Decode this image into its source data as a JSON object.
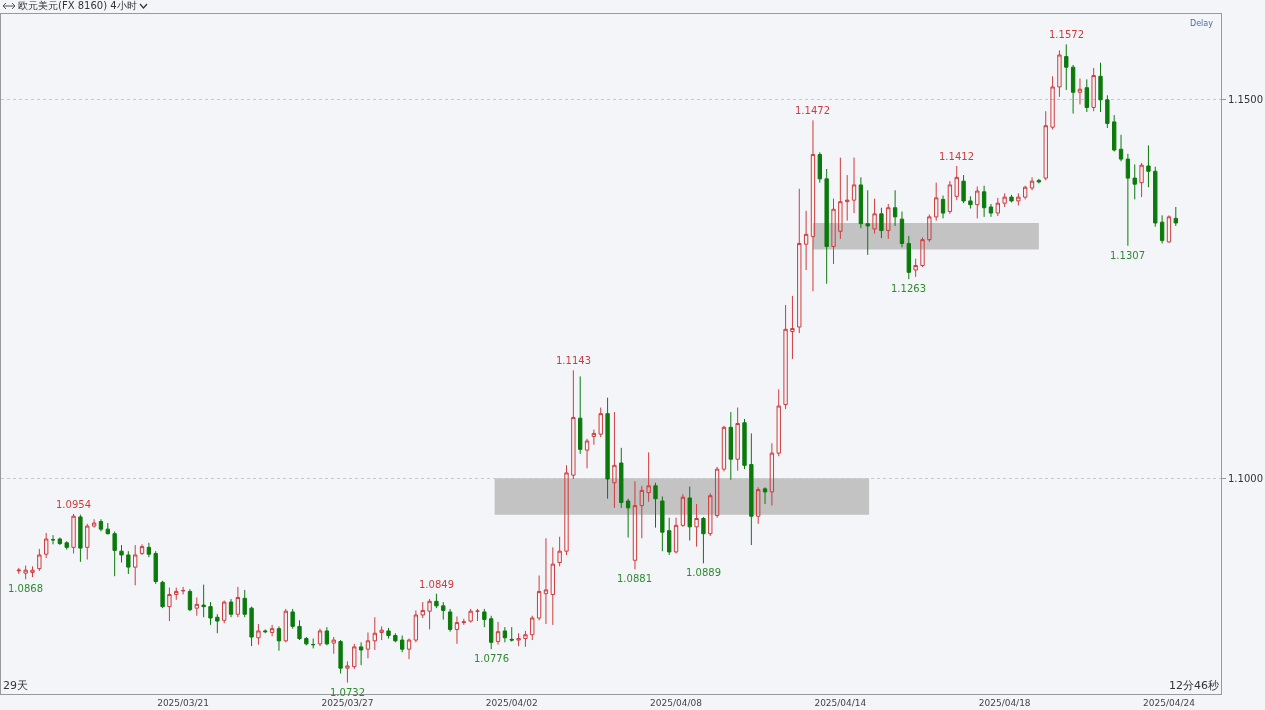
{
  "chart_data": {
    "type": "candlestick",
    "title": "欧元美元(FX 8160)  4小时",
    "categories": [
      null,
      null,
      null,
      null,
      null,
      null,
      null,
      null,
      null,
      null,
      null,
      null,
      null,
      null,
      null,
      null,
      null,
      null,
      null,
      null,
      null,
      null,
      null,
      null,
      "2025/03/21",
      null,
      null,
      null,
      null,
      null,
      null,
      null,
      null,
      null,
      null,
      null,
      null,
      null,
      null,
      null,
      null,
      null,
      null,
      null,
      null,
      null,
      null,
      null,
      "2025/03/27",
      null,
      null,
      null,
      null,
      null,
      null,
      null,
      null,
      null,
      null,
      null,
      null,
      null,
      null,
      null,
      null,
      null,
      null,
      null,
      null,
      null,
      null,
      null,
      "2025/04/02",
      null,
      null,
      null,
      null,
      null,
      null,
      null,
      null,
      null,
      null,
      null,
      null,
      null,
      null,
      null,
      null,
      null,
      null,
      null,
      null,
      null,
      null,
      null,
      "2025/04/08",
      null,
      null,
      null,
      null,
      null,
      null,
      null,
      null,
      null,
      null,
      null,
      null,
      null,
      null,
      null,
      null,
      null,
      null,
      null,
      null,
      null,
      null,
      null,
      "2025/04/14",
      null,
      null,
      null,
      null,
      null,
      null,
      null,
      null,
      null,
      null,
      null,
      null,
      null,
      null,
      null,
      null,
      null,
      null,
      null,
      null,
      null,
      null,
      null,
      "2025/04/18",
      null,
      null,
      null,
      null,
      null,
      null,
      null,
      null,
      null,
      null,
      null,
      null,
      null,
      null,
      null,
      null,
      null,
      null,
      null,
      null,
      null,
      null,
      null,
      "2025/04/24",
      null
    ],
    "ohlc": [
      [
        1.0879,
        1.0883,
        1.0875,
        1.088
      ],
      [
        1.0876,
        1.0886,
        1.0868,
        1.088
      ],
      [
        1.0877,
        1.0885,
        1.0871,
        1.088
      ],
      [
        1.0882,
        1.0908,
        1.0879,
        1.09
      ],
      [
        1.0901,
        1.0929,
        1.0896,
        1.0921
      ],
      [
        1.092,
        1.0926,
        1.0914,
        1.092
      ],
      [
        1.0921,
        1.0923,
        1.0913,
        1.0915
      ],
      [
        1.0916,
        1.0918,
        1.0907,
        1.091
      ],
      [
        1.091,
        1.0954,
        1.0902,
        1.0951
      ],
      [
        1.095,
        1.0953,
        1.0891,
        1.0909
      ],
      [
        1.091,
        1.0941,
        1.0894,
        1.0938
      ],
      [
        1.0938,
        1.0947,
        1.0936,
        1.0942
      ],
      [
        1.0944,
        1.0947,
        1.0931,
        1.0934
      ],
      [
        1.0934,
        1.0942,
        1.0927,
        1.0928
      ],
      [
        1.0928,
        1.0931,
        1.0872,
        1.0906
      ],
      [
        1.0905,
        1.0913,
        1.089,
        1.09
      ],
      [
        1.09,
        1.0905,
        1.0875,
        1.0884
      ],
      [
        1.0884,
        1.0913,
        1.086,
        1.09
      ],
      [
        1.0902,
        1.0914,
        1.09,
        1.0911
      ],
      [
        1.091,
        1.0916,
        1.0897,
        1.0901
      ],
      [
        1.0902,
        1.0905,
        1.0862,
        1.0865
      ],
      [
        1.0864,
        1.0866,
        1.083,
        1.0832
      ],
      [
        1.0832,
        1.0857,
        1.0813,
        1.0848
      ],
      [
        1.0848,
        1.0857,
        1.0841,
        1.0852
      ],
      [
        1.0853,
        1.0858,
        1.0848,
        1.0853
      ],
      [
        1.0852,
        1.0855,
        1.0826,
        1.0828
      ],
      [
        1.083,
        1.0844,
        1.082,
        1.0835
      ],
      [
        1.0834,
        1.0861,
        1.0818,
        1.0832
      ],
      [
        1.0832,
        1.0838,
        1.0808,
        1.0817
      ],
      [
        1.0818,
        1.0822,
        1.0797,
        1.0813
      ],
      [
        1.0814,
        1.084,
        1.081,
        1.0838
      ],
      [
        1.0838,
        1.0842,
        1.0818,
        1.0822
      ],
      [
        1.0822,
        1.0858,
        1.0818,
        1.0844
      ],
      [
        1.0843,
        1.0854,
        1.0818,
        1.0822
      ],
      [
        1.083,
        1.0832,
        1.078,
        1.0792
      ],
      [
        1.0791,
        1.0809,
        1.0782,
        1.08
      ],
      [
        1.08,
        1.0802,
        1.0797,
        1.0799
      ],
      [
        1.0798,
        1.0808,
        1.0793,
        1.0803
      ],
      [
        1.0803,
        1.0806,
        1.0774,
        1.0787
      ],
      [
        1.0787,
        1.0829,
        1.0785,
        1.0826
      ],
      [
        1.0825,
        1.0829,
        1.0803,
        1.0806
      ],
      [
        1.0806,
        1.0814,
        1.0788,
        1.079
      ],
      [
        1.079,
        1.0792,
        1.0781,
        1.0783
      ],
      [
        1.0782,
        1.079,
        1.0777,
        1.0782
      ],
      [
        1.0783,
        1.0803,
        1.078,
        1.08
      ],
      [
        1.08,
        1.0805,
        1.0781,
        1.0783
      ],
      [
        1.0784,
        1.0792,
        1.077,
        1.0788
      ],
      [
        1.0786,
        1.0788,
        1.0744,
        1.0751
      ],
      [
        1.0751,
        1.076,
        1.0732,
        1.0754
      ],
      [
        1.0753,
        1.0783,
        1.075,
        1.0779
      ],
      [
        1.0779,
        1.0785,
        1.0755,
        1.0775
      ],
      [
        1.0776,
        1.0798,
        1.0764,
        1.0787
      ],
      [
        1.0787,
        1.0818,
        1.0775,
        1.0797
      ],
      [
        1.0798,
        1.0806,
        1.0788,
        1.0801
      ],
      [
        1.08,
        1.0804,
        1.079,
        1.0794
      ],
      [
        1.0794,
        1.0797,
        1.0785,
        1.0787
      ],
      [
        1.0788,
        1.0794,
        1.0772,
        1.0776
      ],
      [
        1.0776,
        1.079,
        1.0763,
        1.0788
      ],
      [
        1.0788,
        1.0827,
        1.0785,
        1.0821
      ],
      [
        1.0821,
        1.0838,
        1.0817,
        1.0827
      ],
      [
        1.0826,
        1.0842,
        1.0802,
        1.0839
      ],
      [
        1.0839,
        1.0849,
        1.083,
        1.0833
      ],
      [
        1.0833,
        1.0838,
        1.0815,
        1.0827
      ],
      [
        1.0825,
        1.0829,
        1.0799,
        1.0802
      ],
      [
        1.0802,
        1.0819,
        1.0783,
        1.0811
      ],
      [
        1.0811,
        1.0816,
        1.0808,
        1.0812
      ],
      [
        1.0813,
        1.0829,
        1.0811,
        1.0826
      ],
      [
        1.0826,
        1.0829,
        1.0813,
        1.0826
      ],
      [
        1.0825,
        1.0829,
        1.0805,
        1.0815
      ],
      [
        1.0816,
        1.082,
        1.0776,
        1.0785
      ],
      [
        1.0786,
        1.0812,
        1.0782,
        1.0799
      ],
      [
        1.08,
        1.0805,
        1.0785,
        1.0791
      ],
      [
        1.0789,
        1.0805,
        1.0786,
        1.0788
      ],
      [
        1.0788,
        1.0797,
        1.078,
        1.079
      ],
      [
        1.079,
        1.08,
        1.0779,
        1.0795
      ],
      [
        1.0795,
        1.082,
        1.0788,
        1.0817
      ],
      [
        1.0817,
        1.0873,
        1.0814,
        1.0852
      ],
      [
        1.0849,
        1.0922,
        1.0809,
        1.0854
      ],
      [
        1.0848,
        1.091,
        1.0808,
        1.0888
      ],
      [
        1.089,
        1.0924,
        1.0885,
        1.0905
      ],
      [
        1.0905,
        1.1018,
        1.09,
        1.1008
      ],
      [
        1.1005,
        1.1143,
        1.1,
        1.1081
      ],
      [
        1.108,
        1.1135,
        1.1033,
        1.1039
      ],
      [
        1.1038,
        1.1053,
        1.1014,
        1.105
      ],
      [
        1.1056,
        1.1065,
        1.1045,
        1.106
      ],
      [
        1.1059,
        1.1094,
        1.1055,
        1.1086
      ],
      [
        1.1086,
        1.1107,
        1.0974,
        1.1
      ],
      [
        1.0995,
        1.1088,
        1.0962,
        1.1018
      ],
      [
        1.1021,
        1.1041,
        1.0962,
        1.0969
      ],
      [
        1.0971,
        1.0974,
        1.0923,
        1.0962
      ],
      [
        1.0893,
        1.0997,
        1.0881,
        1.0965
      ],
      [
        1.0965,
        1.0991,
        1.0922,
        1.0985
      ],
      [
        1.0982,
        1.1035,
        1.097,
        1.0991
      ],
      [
        1.0991,
        1.0995,
        1.0936,
        1.0974
      ],
      [
        1.0971,
        1.0977,
        1.0905,
        1.093
      ],
      [
        1.0932,
        1.0949,
        1.09,
        1.0904
      ],
      [
        1.0904,
        1.0949,
        1.0902,
        1.0939
      ],
      [
        1.0939,
        1.098,
        1.0937,
        1.0976
      ],
      [
        1.0975,
        1.099,
        1.0919,
        1.0937
      ],
      [
        1.0937,
        1.0967,
        1.0911,
        1.0948
      ],
      [
        1.0948,
        1.095,
        1.0889,
        1.0928
      ],
      [
        1.0928,
        1.0981,
        1.0925,
        1.0978
      ],
      [
        1.0952,
        1.1016,
        1.0949,
        1.1013
      ],
      [
        1.1013,
        1.107,
        1.101,
        1.1068
      ],
      [
        1.1068,
        1.1088,
        1.0999,
        1.1026
      ],
      [
        1.1026,
        1.1094,
        1.1011,
        1.1073
      ],
      [
        1.1074,
        1.1079,
        1.1013,
        1.1018
      ],
      [
        1.1019,
        1.106,
        1.0913,
        1.0951
      ],
      [
        1.0951,
        1.0989,
        1.0941,
        1.0986
      ],
      [
        1.0987,
        1.0989,
        1.0967,
        1.0983
      ],
      [
        1.0983,
        1.1047,
        1.0965,
        1.1034
      ],
      [
        1.1034,
        1.1118,
        1.103,
        1.1096
      ],
      [
        1.1098,
        1.1229,
        1.1092,
        1.1197
      ],
      [
        1.1194,
        1.1241,
        1.1158,
        1.1198
      ],
      [
        1.12,
        1.1382,
        1.1192,
        1.131
      ],
      [
        1.1309,
        1.1353,
        1.1275,
        1.1322
      ],
      [
        1.1319,
        1.1472,
        1.1247,
        1.1427
      ],
      [
        1.1427,
        1.143,
        1.139,
        1.1395
      ],
      [
        1.1395,
        1.1408,
        1.1257,
        1.1306
      ],
      [
        1.1306,
        1.1369,
        1.1283,
        1.1355
      ],
      [
        1.1326,
        1.1423,
        1.1316,
        1.1365
      ],
      [
        1.1365,
        1.14,
        1.134,
        1.1367
      ],
      [
        1.1367,
        1.1423,
        1.135,
        1.1387
      ],
      [
        1.1387,
        1.1397,
        1.133,
        1.1336
      ],
      [
        1.1336,
        1.138,
        1.1295,
        1.1333
      ],
      [
        1.1329,
        1.1369,
        1.1323,
        1.1349
      ],
      [
        1.1349,
        1.1357,
        1.1317,
        1.1327
      ],
      [
        1.1327,
        1.1362,
        1.1316,
        1.1357
      ],
      [
        1.1357,
        1.138,
        1.1333,
        1.1345
      ],
      [
        1.1342,
        1.1352,
        1.1305,
        1.131
      ],
      [
        1.131,
        1.132,
        1.1263,
        1.1272
      ],
      [
        1.1275,
        1.129,
        1.1266,
        1.1281
      ],
      [
        1.1281,
        1.1318,
        1.1279,
        1.1315
      ],
      [
        1.1315,
        1.1348,
        1.1312,
        1.1345
      ],
      [
        1.1345,
        1.139,
        1.134,
        1.137
      ],
      [
        1.1368,
        1.1373,
        1.1343,
        1.135
      ],
      [
        1.1352,
        1.1392,
        1.1349,
        1.1387
      ],
      [
        1.1372,
        1.1412,
        1.1367,
        1.1397
      ],
      [
        1.1392,
        1.14,
        1.1363,
        1.1366
      ],
      [
        1.1366,
        1.1372,
        1.1356,
        1.1361
      ],
      [
        1.1361,
        1.1385,
        1.1343,
        1.1379
      ],
      [
        1.1378,
        1.1386,
        1.1345,
        1.1357
      ],
      [
        1.1358,
        1.1362,
        1.1345,
        1.135
      ],
      [
        1.135,
        1.137,
        1.1346,
        1.1363
      ],
      [
        1.1363,
        1.1376,
        1.1358,
        1.1371
      ],
      [
        1.1371,
        1.1374,
        1.1364,
        1.1366
      ],
      [
        1.1366,
        1.1376,
        1.136,
        1.1371
      ],
      [
        1.1371,
        1.1386,
        1.1368,
        1.1384
      ],
      [
        1.1383,
        1.1397,
        1.138,
        1.1392
      ],
      [
        1.1393,
        1.1395,
        1.1389,
        1.1391
      ],
      [
        1.1396,
        1.1484,
        1.1393,
        1.1465
      ],
      [
        1.1463,
        1.153,
        1.146,
        1.1516
      ],
      [
        1.1516,
        1.1564,
        1.1503,
        1.1558
      ],
      [
        1.1556,
        1.1572,
        1.1512,
        1.1542
      ],
      [
        1.1542,
        1.1545,
        1.1481,
        1.1509
      ],
      [
        1.1509,
        1.1527,
        1.1493,
        1.1513
      ],
      [
        1.1515,
        1.1526,
        1.1483,
        1.1489
      ],
      [
        1.1489,
        1.1541,
        1.1484,
        1.1531
      ],
      [
        1.153,
        1.1548,
        1.1483,
        1.1499
      ],
      [
        1.1499,
        1.1505,
        1.1462,
        1.1468
      ],
      [
        1.147,
        1.1479,
        1.1431,
        1.1433
      ],
      [
        1.1434,
        1.1453,
        1.1418,
        1.1421
      ],
      [
        1.1421,
        1.1428,
        1.1307,
        1.1396
      ],
      [
        1.1396,
        1.1414,
        1.1368,
        1.1388
      ],
      [
        1.139,
        1.1416,
        1.1371,
        1.1413
      ],
      [
        1.1412,
        1.1439,
        1.1384,
        1.1405
      ],
      [
        1.1405,
        1.1411,
        1.1332,
        1.1337
      ],
      [
        1.1338,
        1.1347,
        1.131,
        1.1314
      ],
      [
        1.1312,
        1.1347,
        1.1311,
        1.1345
      ],
      [
        1.1343,
        1.1358,
        1.1333,
        1.1337
      ]
    ],
    "ylim": [
      1.0717,
      1.1612
    ],
    "yticks": [
      {
        "value": 1.1,
        "label": "1.1000"
      },
      {
        "value": 1.15,
        "label": "1.1500"
      }
    ],
    "grid": "y",
    "bands": [
      {
        "axis": "y",
        "from": 1.0953,
        "to": 1.1001,
        "color": "#c0c0c0"
      },
      {
        "axis": "y",
        "from": 1.1302,
        "to": 1.1337,
        "color": "#c0c0c0"
      }
    ],
    "annotations": [
      "Delay",
      "29天",
      "12分46秒",
      {
        "text": "1.0868",
        "y": 1.0868
      },
      {
        "text": "1.0954",
        "y": 1.0954
      },
      {
        "text": "1.0732",
        "y": 1.0732
      },
      {
        "text": "1.0849",
        "y": 1.0849
      },
      {
        "text": "1.0776",
        "y": 1.0776
      },
      {
        "text": "1.1143",
        "y": 1.1143
      },
      {
        "text": "1.0881",
        "y": 1.0881
      },
      {
        "text": "1.0889",
        "y": 1.0889
      },
      {
        "text": "1.1472",
        "y": 1.1472
      },
      {
        "text": "1.1263",
        "y": 1.1263
      },
      {
        "text": "1.1412",
        "y": 1.1412
      },
      {
        "text": "1.1572",
        "y": 1.1572
      },
      {
        "text": "1.1307",
        "y": 1.1307
      }
    ]
  }
}
